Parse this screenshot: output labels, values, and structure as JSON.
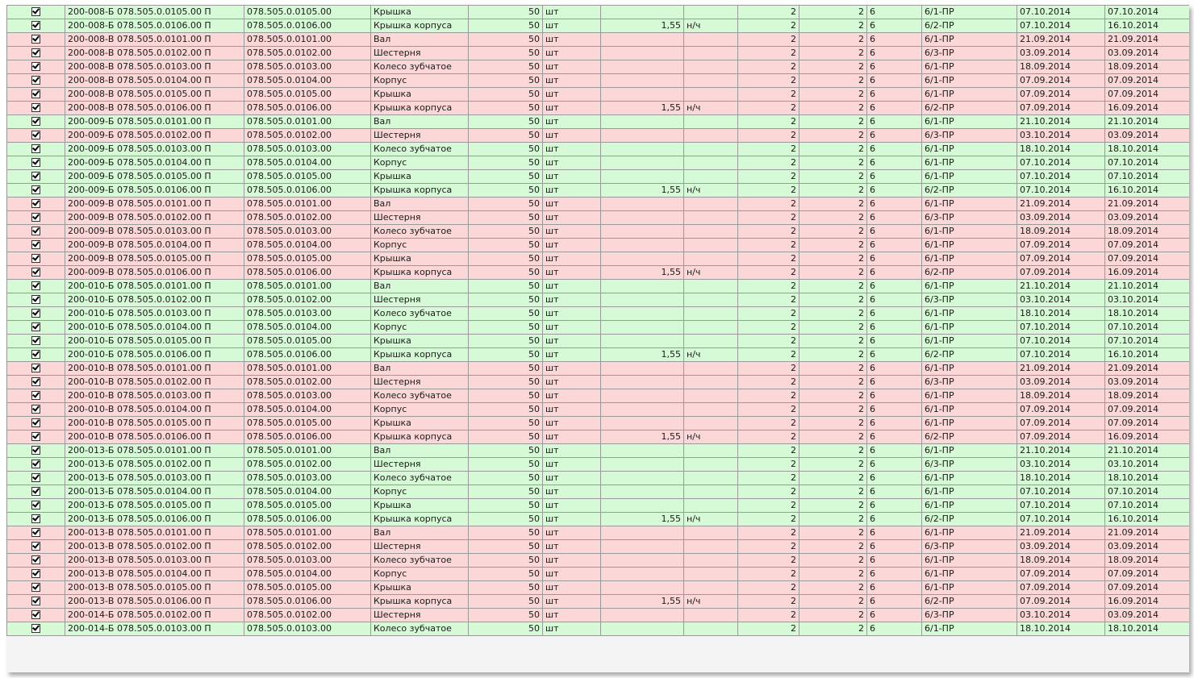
{
  "table": {
    "rows": [
      [
        "green",
        "200-008-Б 078.505.0.0105.00 П",
        "078.505.0.0105.00",
        "Крышка",
        "50",
        "шт",
        "",
        "",
        "2",
        "2",
        "6",
        "6/1-ПР",
        "07.10.2014",
        "07.10.2014"
      ],
      [
        "green",
        "200-008-Б 078.505.0.0106.00 П",
        "078.505.0.0106.00",
        "Крышка корпуса",
        "50",
        "шт",
        "1,55",
        "н/ч",
        "2",
        "2",
        "6",
        "6/2-ПР",
        "07.10.2014",
        "16.10.2014"
      ],
      [
        "red",
        "200-008-В 078.505.0.0101.00 П",
        "078.505.0.0101.00",
        "Вал",
        "50",
        "шт",
        "",
        "",
        "2",
        "2",
        "6",
        "6/1-ПР",
        "21.09.2014",
        "21.09.2014"
      ],
      [
        "red",
        "200-008-В 078.505.0.0102.00 П",
        "078.505.0.0102.00",
        "Шестерня",
        "50",
        "шт",
        "",
        "",
        "2",
        "2",
        "6",
        "6/3-ПР",
        "03.09.2014",
        "03.09.2014"
      ],
      [
        "red",
        "200-008-В 078.505.0.0103.00 П",
        "078.505.0.0103.00",
        "Колесо зубчатое",
        "50",
        "шт",
        "",
        "",
        "2",
        "2",
        "6",
        "6/1-ПР",
        "18.09.2014",
        "18.09.2014"
      ],
      [
        "red",
        "200-008-В 078.505.0.0104.00 П",
        "078.505.0.0104.00",
        "Корпус",
        "50",
        "шт",
        "",
        "",
        "2",
        "2",
        "6",
        "6/1-ПР",
        "07.09.2014",
        "07.09.2014"
      ],
      [
        "red",
        "200-008-В 078.505.0.0105.00 П",
        "078.505.0.0105.00",
        "Крышка",
        "50",
        "шт",
        "",
        "",
        "2",
        "2",
        "6",
        "6/1-ПР",
        "07.09.2014",
        "07.09.2014"
      ],
      [
        "red",
        "200-008-В 078.505.0.0106.00 П",
        "078.505.0.0106.00",
        "Крышка корпуса",
        "50",
        "шт",
        "1,55",
        "н/ч",
        "2",
        "2",
        "6",
        "6/2-ПР",
        "07.09.2014",
        "16.09.2014"
      ],
      [
        "green",
        "200-009-Б 078.505.0.0101.00 П",
        "078.505.0.0101.00",
        "Вал",
        "50",
        "шт",
        "",
        "",
        "2",
        "2",
        "6",
        "6/1-ПР",
        "21.10.2014",
        "21.10.2014"
      ],
      [
        "red",
        "200-009-Б 078.505.0.0102.00 П",
        "078.505.0.0102.00",
        "Шестерня",
        "50",
        "шт",
        "",
        "",
        "2",
        "2",
        "6",
        "6/3-ПР",
        "03.10.2014",
        "03.09.2014"
      ],
      [
        "green",
        "200-009-Б 078.505.0.0103.00 П",
        "078.505.0.0103.00",
        "Колесо зубчатое",
        "50",
        "шт",
        "",
        "",
        "2",
        "2",
        "6",
        "6/1-ПР",
        "18.10.2014",
        "18.10.2014"
      ],
      [
        "green",
        "200-009-Б 078.505.0.0104.00 П",
        "078.505.0.0104.00",
        "Корпус",
        "50",
        "шт",
        "",
        "",
        "2",
        "2",
        "6",
        "6/1-ПР",
        "07.10.2014",
        "07.10.2014"
      ],
      [
        "green",
        "200-009-Б 078.505.0.0105.00 П",
        "078.505.0.0105.00",
        "Крышка",
        "50",
        "шт",
        "",
        "",
        "2",
        "2",
        "6",
        "6/1-ПР",
        "07.10.2014",
        "07.10.2014"
      ],
      [
        "green",
        "200-009-Б 078.505.0.0106.00 П",
        "078.505.0.0106.00",
        "Крышка корпуса",
        "50",
        "шт",
        "1,55",
        "н/ч",
        "2",
        "2",
        "6",
        "6/2-ПР",
        "07.10.2014",
        "16.10.2014"
      ],
      [
        "red",
        "200-009-В 078.505.0.0101.00 П",
        "078.505.0.0101.00",
        "Вал",
        "50",
        "шт",
        "",
        "",
        "2",
        "2",
        "6",
        "6/1-ПР",
        "21.09.2014",
        "21.09.2014"
      ],
      [
        "red",
        "200-009-В 078.505.0.0102.00 П",
        "078.505.0.0102.00",
        "Шестерня",
        "50",
        "шт",
        "",
        "",
        "2",
        "2",
        "6",
        "6/3-ПР",
        "03.09.2014",
        "03.09.2014"
      ],
      [
        "red",
        "200-009-В 078.505.0.0103.00 П",
        "078.505.0.0103.00",
        "Колесо зубчатое",
        "50",
        "шт",
        "",
        "",
        "2",
        "2",
        "6",
        "6/1-ПР",
        "18.09.2014",
        "18.09.2014"
      ],
      [
        "red",
        "200-009-В 078.505.0.0104.00 П",
        "078.505.0.0104.00",
        "Корпус",
        "50",
        "шт",
        "",
        "",
        "2",
        "2",
        "6",
        "6/1-ПР",
        "07.09.2014",
        "07.09.2014"
      ],
      [
        "red",
        "200-009-В 078.505.0.0105.00 П",
        "078.505.0.0105.00",
        "Крышка",
        "50",
        "шт",
        "",
        "",
        "2",
        "2",
        "6",
        "6/1-ПР",
        "07.09.2014",
        "07.09.2014"
      ],
      [
        "red",
        "200-009-В 078.505.0.0106.00 П",
        "078.505.0.0106.00",
        "Крышка корпуса",
        "50",
        "шт",
        "1,55",
        "н/ч",
        "2",
        "2",
        "6",
        "6/2-ПР",
        "07.09.2014",
        "16.09.2014"
      ],
      [
        "green",
        "200-010-Б 078.505.0.0101.00 П",
        "078.505.0.0101.00",
        "Вал",
        "50",
        "шт",
        "",
        "",
        "2",
        "2",
        "6",
        "6/1-ПР",
        "21.10.2014",
        "21.10.2014"
      ],
      [
        "green",
        "200-010-Б 078.505.0.0102.00 П",
        "078.505.0.0102.00",
        "Шестерня",
        "50",
        "шт",
        "",
        "",
        "2",
        "2",
        "6",
        "6/3-ПР",
        "03.10.2014",
        "03.10.2014"
      ],
      [
        "green",
        "200-010-Б 078.505.0.0103.00 П",
        "078.505.0.0103.00",
        "Колесо зубчатое",
        "50",
        "шт",
        "",
        "",
        "2",
        "2",
        "6",
        "6/1-ПР",
        "18.10.2014",
        "18.10.2014"
      ],
      [
        "green",
        "200-010-Б 078.505.0.0104.00 П",
        "078.505.0.0104.00",
        "Корпус",
        "50",
        "шт",
        "",
        "",
        "2",
        "2",
        "6",
        "6/1-ПР",
        "07.10.2014",
        "07.10.2014"
      ],
      [
        "green",
        "200-010-Б 078.505.0.0105.00 П",
        "078.505.0.0105.00",
        "Крышка",
        "50",
        "шт",
        "",
        "",
        "2",
        "2",
        "6",
        "6/1-ПР",
        "07.10.2014",
        "07.10.2014"
      ],
      [
        "green",
        "200-010-Б 078.505.0.0106.00 П",
        "078.505.0.0106.00",
        "Крышка корпуса",
        "50",
        "шт",
        "1,55",
        "н/ч",
        "2",
        "2",
        "6",
        "6/2-ПР",
        "07.10.2014",
        "16.10.2014"
      ],
      [
        "red",
        "200-010-В 078.505.0.0101.00 П",
        "078.505.0.0101.00",
        "Вал",
        "50",
        "шт",
        "",
        "",
        "2",
        "2",
        "6",
        "6/1-ПР",
        "21.09.2014",
        "21.09.2014"
      ],
      [
        "red",
        "200-010-В 078.505.0.0102.00 П",
        "078.505.0.0102.00",
        "Шестерня",
        "50",
        "шт",
        "",
        "",
        "2",
        "2",
        "6",
        "6/3-ПР",
        "03.09.2014",
        "03.09.2014"
      ],
      [
        "red",
        "200-010-В 078.505.0.0103.00 П",
        "078.505.0.0103.00",
        "Колесо зубчатое",
        "50",
        "шт",
        "",
        "",
        "2",
        "2",
        "6",
        "6/1-ПР",
        "18.09.2014",
        "18.09.2014"
      ],
      [
        "red",
        "200-010-В 078.505.0.0104.00 П",
        "078.505.0.0104.00",
        "Корпус",
        "50",
        "шт",
        "",
        "",
        "2",
        "2",
        "6",
        "6/1-ПР",
        "07.09.2014",
        "07.09.2014"
      ],
      [
        "red",
        "200-010-В 078.505.0.0105.00 П",
        "078.505.0.0105.00",
        "Крышка",
        "50",
        "шт",
        "",
        "",
        "2",
        "2",
        "6",
        "6/1-ПР",
        "07.09.2014",
        "07.09.2014"
      ],
      [
        "red",
        "200-010-В 078.505.0.0106.00 П",
        "078.505.0.0106.00",
        "Крышка корпуса",
        "50",
        "шт",
        "1,55",
        "н/ч",
        "2",
        "2",
        "6",
        "6/2-ПР",
        "07.09.2014",
        "16.09.2014"
      ],
      [
        "green",
        "200-013-Б 078.505.0.0101.00 П",
        "078.505.0.0101.00",
        "Вал",
        "50",
        "шт",
        "",
        "",
        "2",
        "2",
        "6",
        "6/1-ПР",
        "21.10.2014",
        "21.10.2014"
      ],
      [
        "green",
        "200-013-Б 078.505.0.0102.00 П",
        "078.505.0.0102.00",
        "Шестерня",
        "50",
        "шт",
        "",
        "",
        "2",
        "2",
        "6",
        "6/3-ПР",
        "03.10.2014",
        "03.10.2014"
      ],
      [
        "green",
        "200-013-Б 078.505.0.0103.00 П",
        "078.505.0.0103.00",
        "Колесо зубчатое",
        "50",
        "шт",
        "",
        "",
        "2",
        "2",
        "6",
        "6/1-ПР",
        "18.10.2014",
        "18.10.2014"
      ],
      [
        "green",
        "200-013-Б 078.505.0.0104.00 П",
        "078.505.0.0104.00",
        "Корпус",
        "50",
        "шт",
        "",
        "",
        "2",
        "2",
        "6",
        "6/1-ПР",
        "07.10.2014",
        "07.10.2014"
      ],
      [
        "green",
        "200-013-Б 078.505.0.0105.00 П",
        "078.505.0.0105.00",
        "Крышка",
        "50",
        "шт",
        "",
        "",
        "2",
        "2",
        "6",
        "6/1-ПР",
        "07.10.2014",
        "07.10.2014"
      ],
      [
        "green",
        "200-013-Б 078.505.0.0106.00 П",
        "078.505.0.0106.00",
        "Крышка корпуса",
        "50",
        "шт",
        "1,55",
        "н/ч",
        "2",
        "2",
        "6",
        "6/2-ПР",
        "07.10.2014",
        "16.10.2014"
      ],
      [
        "red",
        "200-013-В 078.505.0.0101.00 П",
        "078.505.0.0101.00",
        "Вал",
        "50",
        "шт",
        "",
        "",
        "2",
        "2",
        "6",
        "6/1-ПР",
        "21.09.2014",
        "21.09.2014"
      ],
      [
        "red",
        "200-013-В 078.505.0.0102.00 П",
        "078.505.0.0102.00",
        "Шестерня",
        "50",
        "шт",
        "",
        "",
        "2",
        "2",
        "6",
        "6/3-ПР",
        "03.09.2014",
        "03.09.2014"
      ],
      [
        "red",
        "200-013-В 078.505.0.0103.00 П",
        "078.505.0.0103.00",
        "Колесо зубчатое",
        "50",
        "шт",
        "",
        "",
        "2",
        "2",
        "6",
        "6/1-ПР",
        "18.09.2014",
        "18.09.2014"
      ],
      [
        "red",
        "200-013-В 078.505.0.0104.00 П",
        "078.505.0.0104.00",
        "Корпус",
        "50",
        "шт",
        "",
        "",
        "2",
        "2",
        "6",
        "6/1-ПР",
        "07.09.2014",
        "07.09.2014"
      ],
      [
        "red",
        "200-013-В 078.505.0.0105.00 П",
        "078.505.0.0105.00",
        "Крышка",
        "50",
        "шт",
        "",
        "",
        "2",
        "2",
        "6",
        "6/1-ПР",
        "07.09.2014",
        "07.09.2014"
      ],
      [
        "red",
        "200-013-В 078.505.0.0106.00 П",
        "078.505.0.0106.00",
        "Крышка корпуса",
        "50",
        "шт",
        "1,55",
        "н/ч",
        "2",
        "2",
        "6",
        "6/2-ПР",
        "07.09.2014",
        "16.09.2014"
      ],
      [
        "red",
        "200-014-Б 078.505.0.0102.00 П",
        "078.505.0.0102.00",
        "Шестерня",
        "50",
        "шт",
        "",
        "",
        "2",
        "2",
        "6",
        "6/3-ПР",
        "03.10.2014",
        "03.09.2014"
      ],
      [
        "green",
        "200-014-Б 078.505.0.0103.00 П",
        "078.505.0.0103.00",
        "Колесо зубчатое",
        "50",
        "шт",
        "",
        "",
        "2",
        "2",
        "6",
        "6/1-ПР",
        "18.10.2014",
        "18.10.2014"
      ]
    ]
  }
}
